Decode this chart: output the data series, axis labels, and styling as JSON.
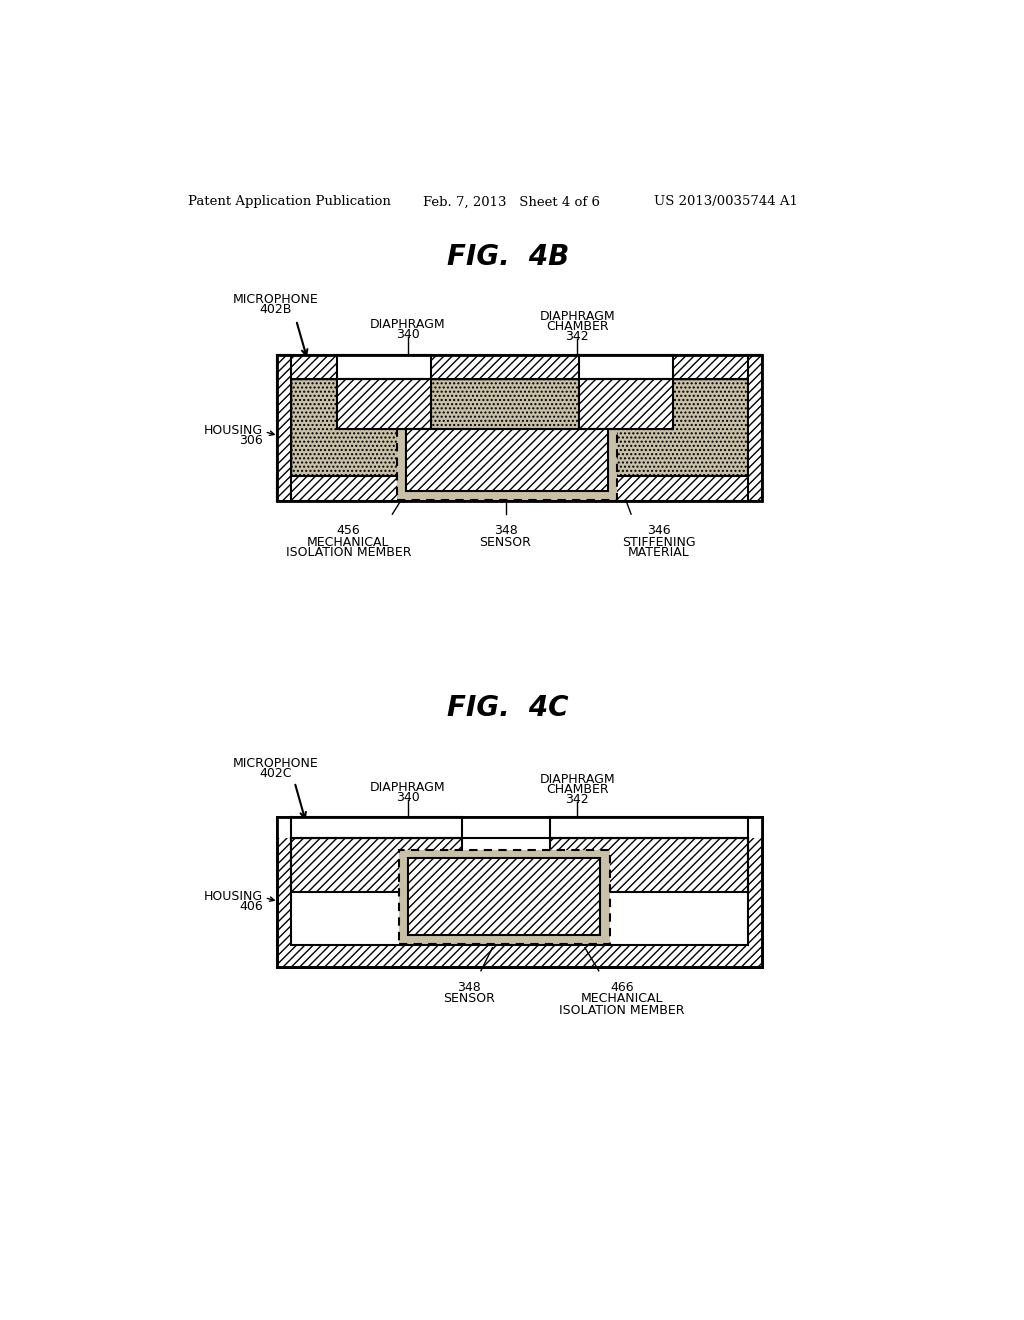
{
  "bg_color": "#ffffff",
  "header_left": "Patent Application Publication",
  "header_mid": "Feb. 7, 2013   Sheet 4 of 6",
  "header_right": "US 2013/0035744 A1",
  "fig4b_title": "FIG.  4B",
  "fig4c_title": "FIG.  4C",
  "label_fs": 9,
  "title_fs": 20,
  "header_fs": 9.5,
  "hatch_dense": "////",
  "dot_color": "#c8c0a8",
  "white": "#ffffff",
  "black": "#000000"
}
